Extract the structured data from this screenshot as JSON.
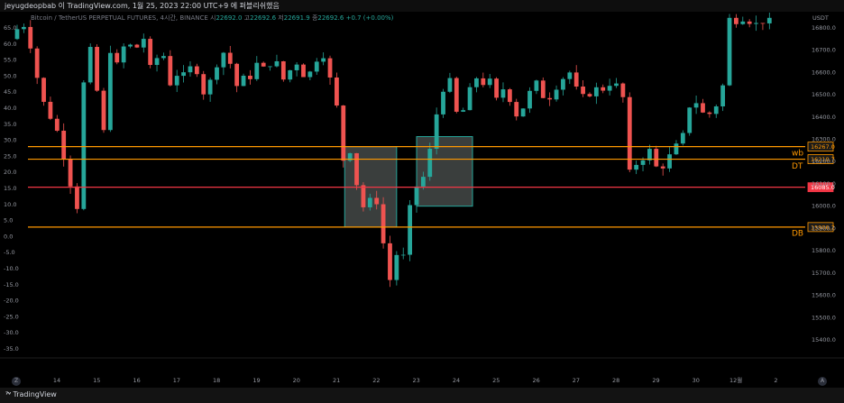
{
  "header": {
    "caption": "jeyugdeopbab 이 TradingView.com, 1월 25, 2023 22:00 UTC+9 에 퍼블리쉬했음"
  },
  "legend": {
    "symbol": "Bitcoin / TetherUS PERPETUAL FUTURES, 4시간, BINANCE",
    "o_label": "시",
    "o": "22692.0",
    "h_label": "고",
    "h": "22692.6",
    "l_label": "저",
    "l": "22691.9",
    "c_label": "종",
    "c": "22692.6",
    "change": "+0.7 (+0.00%)"
  },
  "chart_data": {
    "type": "candlestick",
    "x_ticks": [
      "14",
      "15",
      "16",
      "17",
      "18",
      "19",
      "20",
      "21",
      "22",
      "23",
      "24",
      "25",
      "26",
      "27",
      "28",
      "29",
      "30",
      "12월",
      "2"
    ],
    "y_left_ticks": [
      "65.0",
      "60.0",
      "55.0",
      "50.0",
      "45.0",
      "40.0",
      "35.0",
      "30.0",
      "25.0",
      "20.0",
      "15.0",
      "10.0",
      "5.0",
      "0.0",
      "-5.0",
      "-10.0",
      "-15.0",
      "-20.0",
      "-25.0",
      "-30.0",
      "-35.0"
    ],
    "y_right_unit": "USDT",
    "y_right_ticks": [
      "16800.0",
      "16700.0",
      "16600.0",
      "16500.0",
      "16400.0",
      "16300.0",
      "16200.0",
      "16100.0",
      "16000.0",
      "15900.0",
      "15800.0",
      "15700.0",
      "15600.0",
      "15500.0",
      "15400.0"
    ],
    "ylim_right": [
      15400,
      16860
    ],
    "horizontal_levels": [
      {
        "price": 16267.0,
        "label": "16267.0",
        "color": "#ff9800"
      },
      {
        "price": 16210.7,
        "label": "16210.7",
        "color": "#ff9800"
      },
      {
        "price": 16085.0,
        "label": "16085.0",
        "color": "#f23645"
      },
      {
        "price": 15906.2,
        "label": "15906.2",
        "color": "#ff9800"
      }
    ],
    "annotations": [
      {
        "text": "wb",
        "price": 16240,
        "color": "#ff9800"
      },
      {
        "text": "DT",
        "price": 16180,
        "color": "#ff9800"
      },
      {
        "text": "DB",
        "price": 15880,
        "color": "#ff9800"
      }
    ],
    "boxes": [
      {
        "x_from": 21.2,
        "x_to": 22.5,
        "p_from": 16267,
        "p_to": 15906
      },
      {
        "x_from": 23.0,
        "x_to": 24.4,
        "p_from": 16312,
        "p_to": 16000
      }
    ],
    "price_path": [
      [
        13.0,
        16750
      ],
      [
        13.3,
        16830
      ],
      [
        13.5,
        16720
      ],
      [
        13.7,
        16550
      ],
      [
        13.9,
        16420
      ],
      [
        14.1,
        16380
      ],
      [
        14.3,
        16250
      ],
      [
        14.5,
        16100
      ],
      [
        14.6,
        15890
      ],
      [
        14.7,
        16050
      ],
      [
        14.8,
        16520
      ],
      [
        15.0,
        16700
      ],
      [
        15.2,
        16480
      ],
      [
        15.3,
        16260
      ],
      [
        15.5,
        16700
      ],
      [
        15.7,
        16620
      ],
      [
        15.9,
        16760
      ],
      [
        16.1,
        16680
      ],
      [
        16.3,
        16780
      ],
      [
        16.5,
        16620
      ],
      [
        16.8,
        16700
      ],
      [
        17.0,
        16550
      ],
      [
        17.2,
        16600
      ],
      [
        17.4,
        16580
      ],
      [
        17.6,
        16660
      ],
      [
        17.8,
        16500
      ],
      [
        18.0,
        16560
      ],
      [
        18.3,
        16700
      ],
      [
        18.5,
        16640
      ],
      [
        18.7,
        16520
      ],
      [
        18.9,
        16600
      ],
      [
        19.0,
        16580
      ],
      [
        19.2,
        16650
      ],
      [
        19.4,
        16600
      ],
      [
        19.6,
        16680
      ],
      [
        19.8,
        16560
      ],
      [
        20.0,
        16610
      ],
      [
        20.2,
        16650
      ],
      [
        20.4,
        16560
      ],
      [
        20.6,
        16640
      ],
      [
        20.8,
        16700
      ],
      [
        21.0,
        16570
      ],
      [
        21.2,
        16420
      ],
      [
        21.3,
        16200
      ],
      [
        21.5,
        16250
      ],
      [
        21.7,
        16070
      ],
      [
        21.9,
        15960
      ],
      [
        22.1,
        16090
      ],
      [
        22.3,
        15880
      ],
      [
        22.4,
        15740
      ],
      [
        22.5,
        15670
      ],
      [
        22.6,
        15800
      ],
      [
        22.8,
        15750
      ],
      [
        22.9,
        15820
      ],
      [
        23.0,
        15990
      ],
      [
        23.2,
        16110
      ],
      [
        23.4,
        16140
      ],
      [
        23.6,
        16360
      ],
      [
        23.8,
        16520
      ],
      [
        24.0,
        16560
      ],
      [
        24.2,
        16390
      ],
      [
        24.4,
        16450
      ],
      [
        24.6,
        16590
      ],
      [
        24.8,
        16550
      ],
      [
        25.0,
        16560
      ],
      [
        25.2,
        16460
      ],
      [
        25.4,
        16560
      ],
      [
        25.6,
        16400
      ],
      [
        25.8,
        16430
      ],
      [
        26.0,
        16510
      ],
      [
        26.2,
        16560
      ],
      [
        26.4,
        16460
      ],
      [
        26.6,
        16520
      ],
      [
        26.8,
        16570
      ],
      [
        27.0,
        16600
      ],
      [
        27.2,
        16510
      ],
      [
        27.4,
        16480
      ],
      [
        27.6,
        16530
      ],
      [
        27.8,
        16520
      ],
      [
        28.0,
        16550
      ],
      [
        28.2,
        16540
      ],
      [
        28.4,
        16460
      ],
      [
        28.5,
        16150
      ],
      [
        28.6,
        16180
      ],
      [
        28.8,
        16210
      ],
      [
        29.0,
        16250
      ],
      [
        29.2,
        16160
      ],
      [
        29.4,
        16190
      ],
      [
        29.6,
        16260
      ],
      [
        29.8,
        16290
      ],
      [
        30.0,
        16450
      ],
      [
        30.2,
        16470
      ],
      [
        30.4,
        16390
      ],
      [
        30.6,
        16440
      ],
      [
        30.8,
        16480
      ],
      [
        31.0,
        16840
      ],
      [
        31.2,
        16830
      ],
      [
        31.4,
        16850
      ],
      [
        31.6,
        16810
      ],
      [
        31.8,
        16830
      ],
      [
        32.0,
        16830
      ]
    ]
  }
}
